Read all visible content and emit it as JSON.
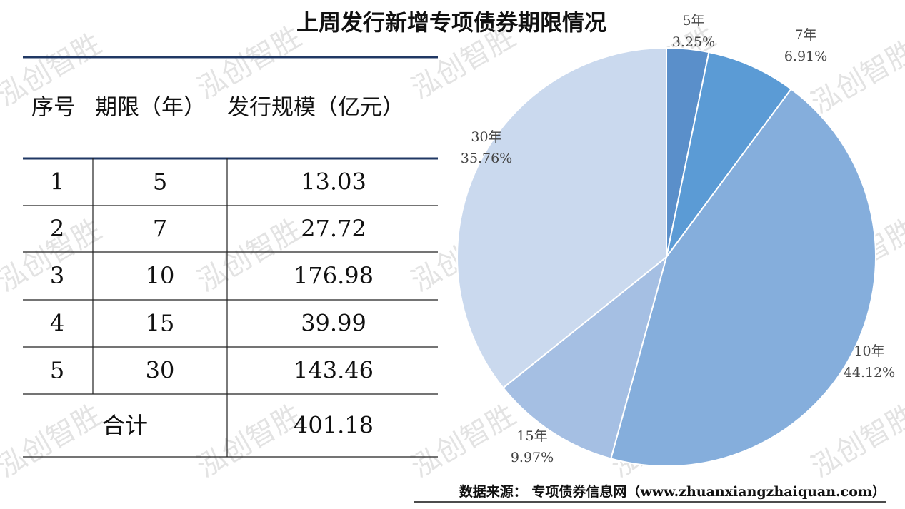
{
  "title": "上周发行新增专项债券期限情况",
  "table": {
    "header": [
      "序号",
      "期限（年）",
      "发行规模（亿元）"
    ],
    "rows": [
      [
        1,
        5,
        13.03
      ],
      [
        2,
        7,
        27.72
      ],
      [
        3,
        10,
        176.98
      ],
      [
        4,
        15,
        39.99
      ],
      [
        5,
        30,
        143.46
      ]
    ],
    "total_label": "合计",
    "total_value": 401.18
  },
  "chart_data": {
    "type": "pie",
    "categories": [
      "5年",
      "7年",
      "10年",
      "15年",
      "30年"
    ],
    "values": [
      3.25,
      6.91,
      44.12,
      9.97,
      35.76
    ],
    "value_labels": [
      "3.25%",
      "6.91%",
      "44.12%",
      "9.97%",
      "35.76%"
    ],
    "colors": [
      "#5a8fca",
      "#5b9bd5",
      "#85aedc",
      "#a5bfe3",
      "#cad9ee"
    ]
  },
  "source": "数据来源： 专项债券信息网（www.zhuanxiangzhaiquan.com）",
  "watermark": "泓创智胜"
}
